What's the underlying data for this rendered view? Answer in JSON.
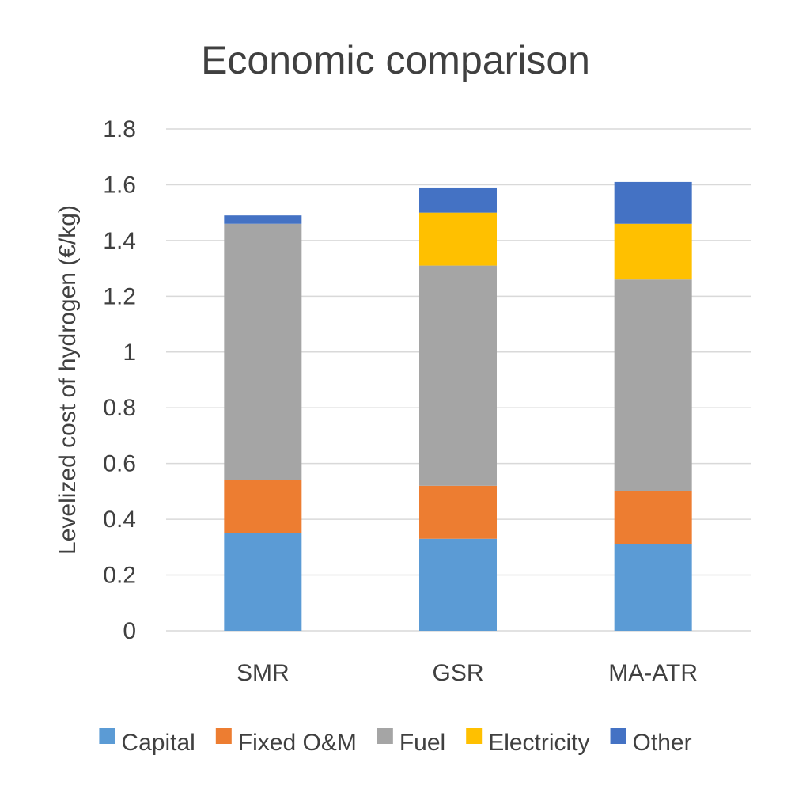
{
  "chart_data": {
    "type": "bar",
    "stacked": true,
    "title": "Economic comparison",
    "xlabel": "",
    "ylabel": "Levelized cost of hydrogen (€/kg)",
    "ylim": [
      0,
      1.8
    ],
    "yticks": [
      0,
      0.2,
      0.4,
      0.6,
      0.8,
      1,
      1.2,
      1.4,
      1.6,
      1.8
    ],
    "ytick_labels": [
      "0",
      "0.2",
      "0.4",
      "0.6",
      "0.8",
      "1",
      "1.2",
      "1.4",
      "1.6",
      "1.8"
    ],
    "grid": true,
    "legend_position": "bottom",
    "categories": [
      "SMR",
      "GSR",
      "MA-ATR"
    ],
    "series": [
      {
        "name": "Capital",
        "color": "#5b9bd5",
        "values": [
          0.35,
          0.33,
          0.31
        ]
      },
      {
        "name": "Fixed O&M",
        "color": "#ed7d31",
        "values": [
          0.19,
          0.19,
          0.19
        ]
      },
      {
        "name": "Fuel",
        "color": "#a5a5a5",
        "values": [
          0.92,
          0.79,
          0.76
        ]
      },
      {
        "name": "Electricity",
        "color": "#ffc000",
        "values": [
          0.0,
          0.19,
          0.2
        ]
      },
      {
        "name": "Other",
        "color": "#4472c4",
        "values": [
          0.03,
          0.09,
          0.15
        ]
      }
    ]
  }
}
